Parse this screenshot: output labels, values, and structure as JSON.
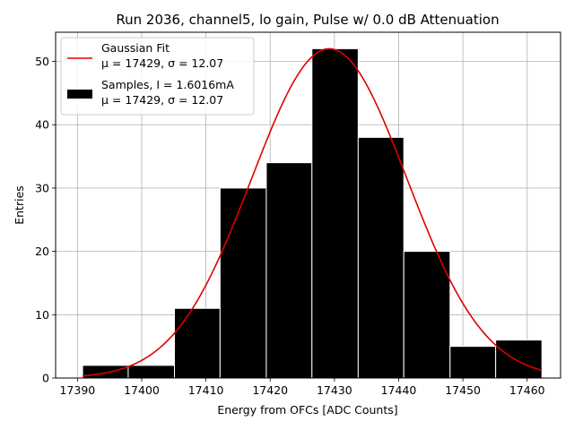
{
  "chart_data": {
    "type": "bar",
    "title": "Run 2036, channel5, lo gain, Pulse w/ 0.0 dB Attenuation",
    "xlabel": "Energy from OFCs [ADC Counts]",
    "ylabel": "Entries",
    "xlim": [
      17386.6,
      17465.2
    ],
    "ylim": [
      0,
      54.6
    ],
    "grid": true,
    "legend_position": "top-left",
    "xticks": [
      17390,
      17400,
      17410,
      17420,
      17430,
      17440,
      17450,
      17460
    ],
    "yticks": [
      0,
      10,
      20,
      30,
      40,
      50
    ],
    "histogram": {
      "name_line1": "Samples, I = 1.6016mA",
      "name_line2": "μ = 17429, σ = 12.07",
      "color": "#000000",
      "bins": [
        {
          "x0": 17390.8,
          "x1": 17397.9,
          "count": 2
        },
        {
          "x0": 17397.9,
          "x1": 17405.1,
          "count": 2
        },
        {
          "x0": 17405.1,
          "x1": 17412.2,
          "count": 11
        },
        {
          "x0": 17412.2,
          "x1": 17419.4,
          "count": 30
        },
        {
          "x0": 17419.4,
          "x1": 17426.5,
          "count": 34
        },
        {
          "x0": 17426.5,
          "x1": 17433.7,
          "count": 52
        },
        {
          "x0": 17433.7,
          "x1": 17440.8,
          "count": 38
        },
        {
          "x0": 17440.8,
          "x1": 17448.0,
          "count": 20
        },
        {
          "x0": 17448.0,
          "x1": 17455.1,
          "count": 5
        },
        {
          "x0": 17455.1,
          "x1": 17462.3,
          "count": 6
        }
      ]
    },
    "fit": {
      "name_line1": "Gaussian Fit",
      "name_line2": "μ = 17429, σ = 12.07",
      "color": "#e00000",
      "mu": 17429.2,
      "sigma": 12.07,
      "amplitude": 52,
      "x_range": [
        17390.8,
        17462.3
      ]
    }
  }
}
